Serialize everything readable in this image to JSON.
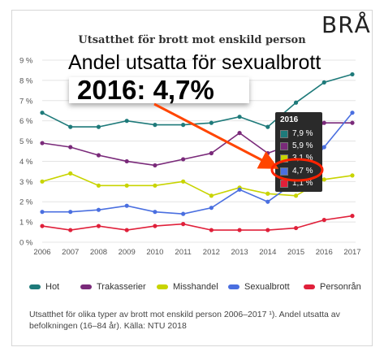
{
  "brand": "BRÅ",
  "annotation": {
    "line1": "Andel utsatta för sexualbrott",
    "line2": "2016: 4,7%"
  },
  "tooltip": {
    "year": "2016",
    "rows": [
      {
        "label": "7,9 %",
        "color": "#1e7a7a"
      },
      {
        "label": "5,9 %",
        "color": "#7a2a7a"
      },
      {
        "label": "3,1 %",
        "color": "#c8d400"
      },
      {
        "label": "4,7 %",
        "color": "#4a6fe0"
      },
      {
        "label": "1,1 %",
        "color": "#e0203a"
      }
    ]
  },
  "footnote": "Utsatthet för olika typer av brott mot enskild person 2006–2017 ¹). Andel utsatta av befolkningen (16–84 år). Källa: NTU 2018",
  "chart_data": {
    "type": "line",
    "title": "Utsatthet för brott mot enskild person",
    "x": [
      "2006",
      "2007",
      "2008",
      "2009",
      "2010",
      "2011",
      "2012",
      "2013",
      "2014",
      "2015",
      "2016",
      "2017"
    ],
    "y_ticks": [
      "0 %",
      "1 %",
      "2 %",
      "3 %",
      "4 %",
      "5 %",
      "6 %",
      "7 %",
      "8 %",
      "9 %"
    ],
    "ylim": [
      0,
      9
    ],
    "grid": true,
    "legend_position": "bottom",
    "series": [
      {
        "name": "Hot",
        "color": "#1e7a7a",
        "values": [
          6.4,
          5.7,
          5.7,
          6.0,
          5.8,
          5.8,
          5.9,
          6.2,
          5.7,
          6.9,
          7.9,
          8.3
        ]
      },
      {
        "name": "Trakasserier",
        "color": "#7a2a7a",
        "values": [
          4.9,
          4.7,
          4.3,
          4.0,
          3.8,
          4.1,
          4.4,
          5.4,
          4.4,
          4.9,
          5.9,
          5.9
        ]
      },
      {
        "name": "Misshandel",
        "color": "#c8d400",
        "values": [
          3.0,
          3.4,
          2.8,
          2.8,
          2.8,
          3.0,
          2.3,
          2.7,
          2.4,
          2.3,
          3.1,
          3.3
        ]
      },
      {
        "name": "Sexualbrott",
        "color": "#4a6fe0",
        "values": [
          1.5,
          1.5,
          1.6,
          1.8,
          1.5,
          1.4,
          1.7,
          2.6,
          2.0,
          3.0,
          4.7,
          6.4
        ]
      },
      {
        "name": "Personrån",
        "color": "#e0203a",
        "values": [
          0.8,
          0.6,
          0.8,
          0.6,
          0.8,
          0.9,
          0.6,
          0.6,
          0.6,
          0.7,
          1.1,
          1.3
        ]
      }
    ]
  }
}
